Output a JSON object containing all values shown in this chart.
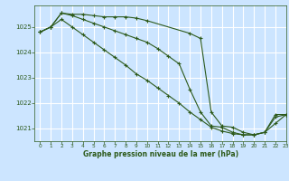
{
  "background_color": "#cce5ff",
  "grid_color": "#ffffff",
  "line_color": "#2d5a1b",
  "title": "Graphe pression niveau de la mer (hPa)",
  "xlim": [
    -0.5,
    23
  ],
  "ylim": [
    1020.5,
    1025.85
  ],
  "yticks": [
    1021,
    1022,
    1023,
    1024,
    1025
  ],
  "xticks": [
    0,
    1,
    2,
    3,
    4,
    5,
    6,
    7,
    8,
    9,
    10,
    11,
    12,
    13,
    14,
    15,
    16,
    17,
    18,
    19,
    20,
    21,
    22,
    23
  ],
  "series": {
    "line1_x": [
      0,
      1,
      2,
      3,
      4,
      5,
      6,
      7,
      8,
      9,
      10,
      14,
      15,
      16,
      17,
      18,
      19,
      20,
      21,
      22,
      23
    ],
    "line1_y": [
      1024.8,
      1025.0,
      1025.55,
      1025.5,
      1025.5,
      1025.45,
      1025.4,
      1025.4,
      1025.4,
      1025.35,
      1025.25,
      1024.75,
      1024.55,
      1021.65,
      1021.1,
      1021.05,
      1020.85,
      1020.75,
      1020.85,
      1021.55,
      1021.55
    ],
    "line2_x": [
      0,
      1,
      2,
      3,
      4,
      5,
      6,
      7,
      8,
      9,
      10,
      11,
      12,
      13,
      14,
      15,
      16,
      17,
      18,
      19,
      20,
      21,
      22,
      23
    ],
    "line2_y": [
      1024.8,
      1025.0,
      1025.55,
      1025.45,
      1025.3,
      1025.15,
      1025.0,
      1024.85,
      1024.7,
      1024.55,
      1024.4,
      1024.15,
      1023.85,
      1023.55,
      1022.55,
      1021.65,
      1021.1,
      1021.05,
      1020.85,
      1020.75,
      1020.75,
      1020.85,
      1021.45,
      1021.55
    ],
    "line3_x": [
      0,
      1,
      2,
      3,
      4,
      5,
      6,
      7,
      8,
      9,
      10,
      11,
      12,
      13,
      14,
      15,
      16,
      17,
      18,
      19,
      20,
      21,
      22,
      23
    ],
    "line3_y": [
      1024.8,
      1025.0,
      1025.3,
      1025.0,
      1024.7,
      1024.4,
      1024.1,
      1023.8,
      1023.5,
      1023.15,
      1022.9,
      1022.6,
      1022.3,
      1022.0,
      1021.65,
      1021.35,
      1021.05,
      1020.9,
      1020.8,
      1020.75,
      1020.75,
      1020.85,
      1021.2,
      1021.55
    ]
  }
}
